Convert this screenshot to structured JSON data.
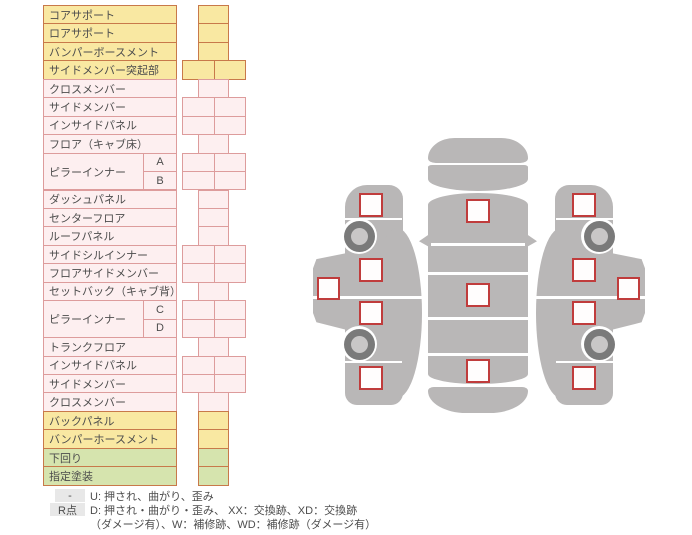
{
  "table": {
    "rows": [
      {
        "label": "コアサポート",
        "color": "yellow",
        "cells": "single"
      },
      {
        "label": "ロアサポート",
        "color": "yellow",
        "cells": "single"
      },
      {
        "label": "バンパーボースメント",
        "color": "yellow",
        "cells": "single"
      },
      {
        "label": "サイドメンバー突起部",
        "color": "yellow",
        "cells": "double"
      },
      {
        "label": "クロスメンバー",
        "color": "pink",
        "cells": "single"
      },
      {
        "label": "サイドメンバー",
        "color": "pink",
        "cells": "double"
      },
      {
        "label": "インサイドパネル",
        "color": "pink",
        "cells": "double"
      },
      {
        "label": "フロア（キャブ床）",
        "color": "pink",
        "cells": "single"
      },
      {
        "label": "ピラーインナー",
        "color": "pink",
        "cells": "double",
        "sub": "A",
        "groupStart": true
      },
      {
        "label": "ピラーインナー",
        "color": "pink",
        "cells": "double",
        "sub": "B"
      },
      {
        "label": "ダッシュパネル",
        "color": "pink",
        "cells": "single"
      },
      {
        "label": "センターフロア",
        "color": "pink",
        "cells": "single"
      },
      {
        "label": "ルーフパネル",
        "color": "pink",
        "cells": "single"
      },
      {
        "label": "サイドシルインナー",
        "color": "pink",
        "cells": "double"
      },
      {
        "label": "フロアサイドメンバー",
        "color": "pink",
        "cells": "double"
      },
      {
        "label": "セットバック（キャブ背）",
        "color": "pink",
        "cells": "single"
      },
      {
        "label": "ピラーインナー",
        "color": "pink",
        "cells": "double",
        "sub": "C",
        "groupStart": true
      },
      {
        "label": "ピラーインナー",
        "color": "pink",
        "cells": "double",
        "sub": "D"
      },
      {
        "label": "トランクフロア",
        "color": "pink",
        "cells": "single"
      },
      {
        "label": "インサイドパネル",
        "color": "pink",
        "cells": "double"
      },
      {
        "label": "サイドメンバー",
        "color": "pink",
        "cells": "double"
      },
      {
        "label": "クロスメンバー",
        "color": "pink",
        "cells": "single"
      },
      {
        "label": "バックパネル",
        "color": "yellow",
        "cells": "single"
      },
      {
        "label": "バンパーホースメント",
        "color": "yellow",
        "cells": "single"
      },
      {
        "label": "下回り",
        "color": "green",
        "cells": "single"
      },
      {
        "label": "指定塗装",
        "color": "green",
        "cells": "single"
      }
    ]
  },
  "legend": {
    "items": [
      {
        "badge": "-",
        "text": "U: 押され、曲がり、歪み"
      },
      {
        "badge": "R点",
        "text": "D: 押され・曲がり・歪み、 XX：交換跡、XD：交換跡",
        "text2": "（ダメージ有）、W：補修跡、WD：補修跡（ダメージ有）"
      }
    ]
  },
  "diagram": {
    "views": [
      "left-side-view",
      "top-view",
      "right-side-view"
    ],
    "input_cells": [
      "left-front-fender",
      "left-cab",
      "left-front-door",
      "left-rear-door",
      "left-rear-fender",
      "top-hood",
      "top-roof",
      "top-trunk",
      "right-front-fender",
      "right-cab",
      "right-front-door",
      "right-rear-door",
      "right-rear-fender"
    ]
  },
  "colors": {
    "row_yellow_bg": "#f9e8a2",
    "row_yellow_border": "#c8794a",
    "row_pink_bg": "#fdeff0",
    "row_pink_border": "#dd9c9c",
    "row_green_bg": "#d6e4ae",
    "row_green_border": "#c8794a",
    "car_body": "#b9b7b7",
    "damage_square_border": "#c03c3c",
    "legend_badge_bg": "#e8e8e8",
    "text": "#4d4d4d"
  }
}
